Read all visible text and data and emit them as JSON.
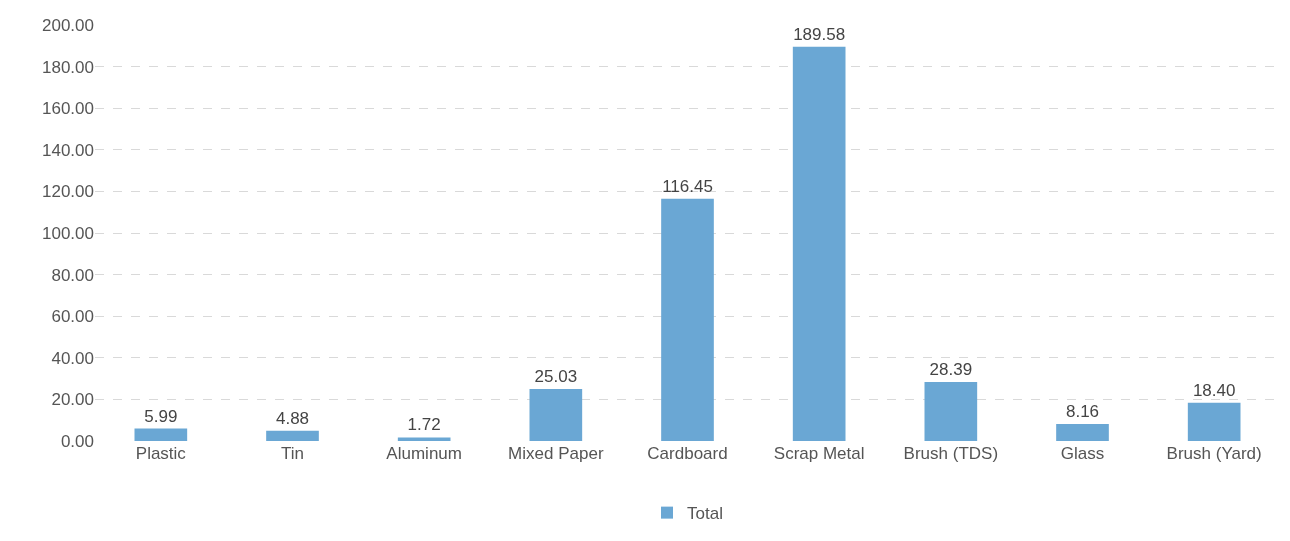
{
  "chart_data": {
    "type": "bar",
    "categories": [
      "Plastic",
      "Tin",
      "Aluminum",
      "Mixed Paper",
      "Cardboard",
      "Scrap Metal",
      "Brush (TDS)",
      "Glass",
      "Brush (Yard)"
    ],
    "series": [
      {
        "name": "Total",
        "color": "#6aa7d4",
        "values": [
          5.99,
          4.88,
          1.72,
          25.03,
          116.45,
          189.58,
          28.39,
          8.16,
          18.4
        ],
        "value_labels": [
          "5.99",
          "4.88",
          "1.72",
          "25.03",
          "116.45",
          "189.58",
          "28.39",
          "8.16",
          "18.40"
        ]
      }
    ],
    "ylim": [
      0,
      200
    ],
    "yticks": [
      {
        "value": 0,
        "label": "0.00"
      },
      {
        "value": 20,
        "label": "20.00"
      },
      {
        "value": 40,
        "label": "40.00"
      },
      {
        "value": 60,
        "label": "60.00"
      },
      {
        "value": 80,
        "label": "80.00"
      },
      {
        "value": 100,
        "label": "100.00"
      },
      {
        "value": 120,
        "label": "120.00"
      },
      {
        "value": 140,
        "label": "140.00"
      },
      {
        "value": 160,
        "label": "160.00"
      },
      {
        "value": 180,
        "label": "180.00"
      },
      {
        "value": 200,
        "label": "200.00"
      }
    ],
    "grid": "y",
    "legend": "bottom"
  }
}
